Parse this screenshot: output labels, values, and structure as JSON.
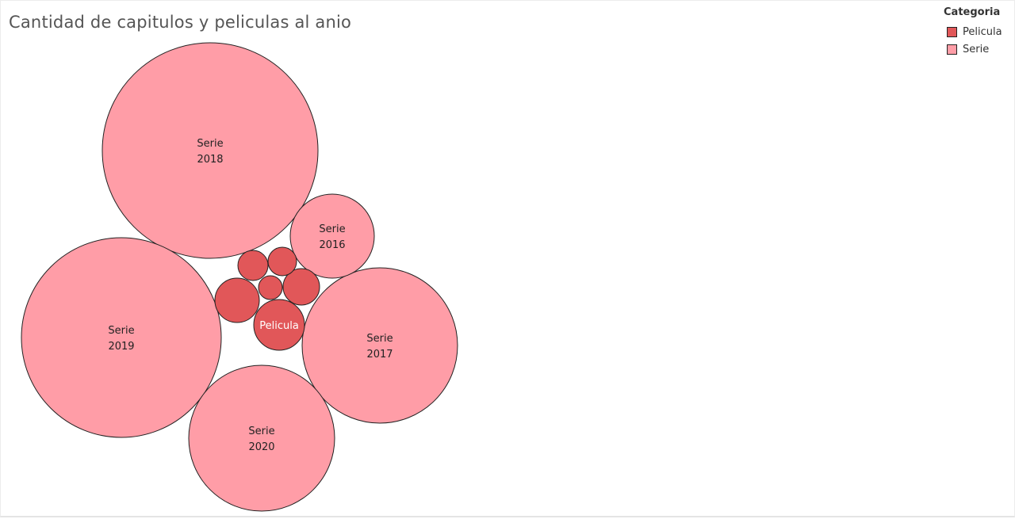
{
  "chart_data": {
    "type": "bubble",
    "title": "Cantidad de capitulos y peliculas al anio",
    "legend": {
      "title": "Categoria",
      "placement": "top-right",
      "items": [
        {
          "label": "Pelicula",
          "color": "#e15759"
        },
        {
          "label": "Serie",
          "color": "#ff9da7"
        }
      ]
    },
    "bubbles": [
      {
        "category": "Serie",
        "year": "2018",
        "labels": [
          "Serie",
          "2018"
        ],
        "relative_size": 1.0
      },
      {
        "category": "Serie",
        "year": "2019",
        "labels": [
          "Serie",
          "2019"
        ],
        "relative_size": 0.86
      },
      {
        "category": "Serie",
        "year": "2017",
        "labels": [
          "Serie",
          "2017"
        ],
        "relative_size": 0.52
      },
      {
        "category": "Serie",
        "year": "2020",
        "labels": [
          "Serie",
          "2020"
        ],
        "relative_size": 0.46
      },
      {
        "category": "Serie",
        "year": "2016",
        "labels": [
          "Serie",
          "2016"
        ],
        "relative_size": 0.15
      },
      {
        "category": "Pelicula",
        "labels": [
          "Pelicula"
        ],
        "relative_size": 0.056
      },
      {
        "category": "Pelicula",
        "labels": [],
        "relative_size": 0.043
      },
      {
        "category": "Pelicula",
        "labels": [],
        "relative_size": 0.028
      },
      {
        "category": "Pelicula",
        "labels": [],
        "relative_size": 0.02
      },
      {
        "category": "Pelicula",
        "labels": [],
        "relative_size": 0.017
      },
      {
        "category": "Pelicula",
        "labels": [],
        "relative_size": 0.013
      }
    ]
  }
}
